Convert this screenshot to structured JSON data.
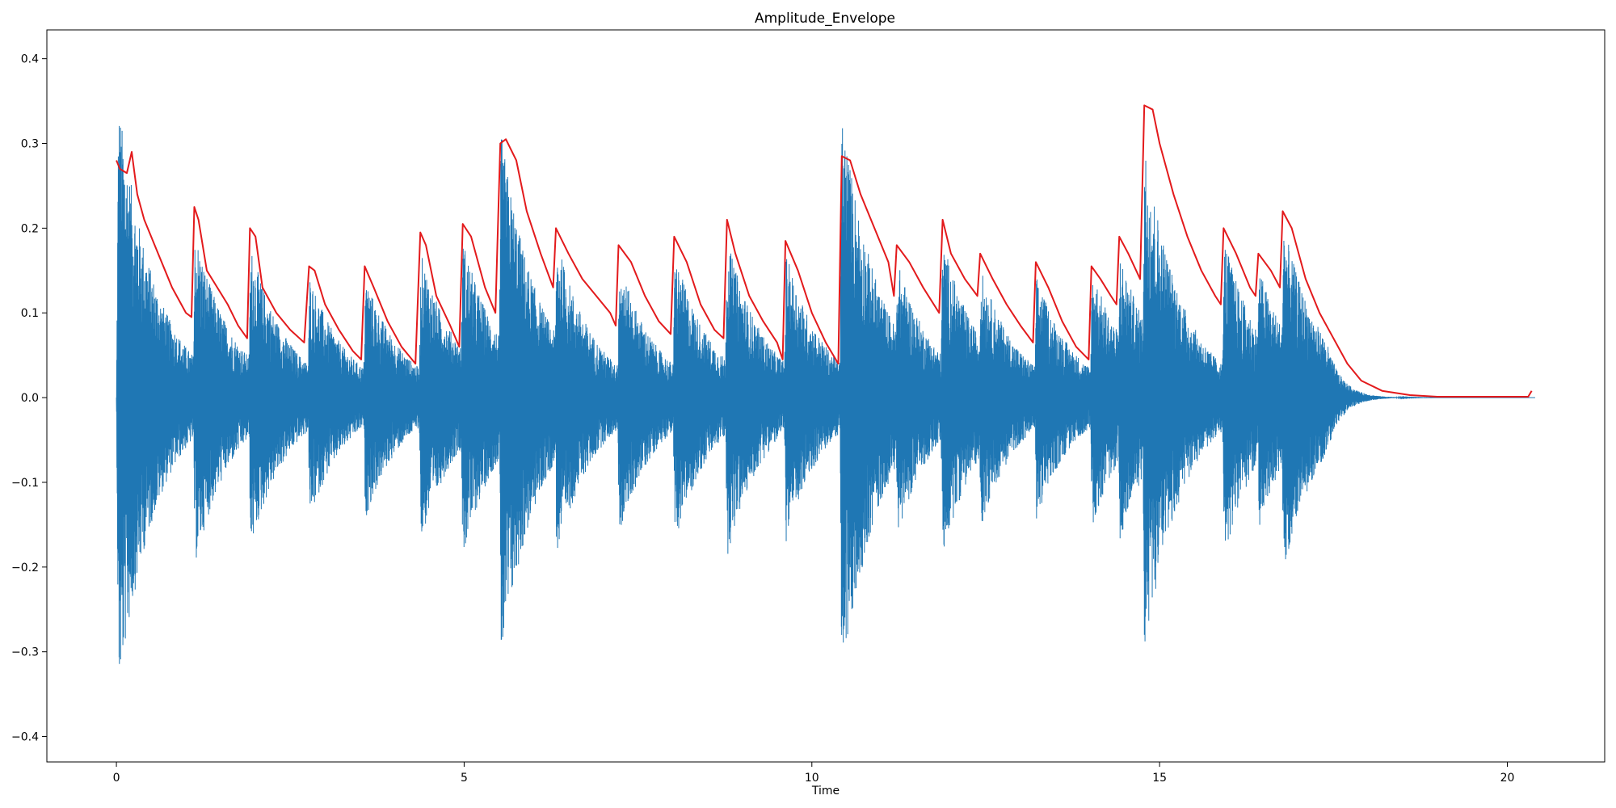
{
  "chart_data": {
    "type": "line",
    "title": "Amplitude_Envelope",
    "xlabel": "Time",
    "ylabel": "",
    "xlim": [
      -1.0,
      21.4
    ],
    "ylim": [
      -0.43,
      0.434
    ],
    "x_ticks": [
      0,
      5,
      10,
      15,
      20
    ],
    "x_tick_labels": [
      "0",
      "5",
      "10",
      "15",
      "20"
    ],
    "y_ticks": [
      -0.4,
      -0.3,
      -0.2,
      -0.1,
      0.0,
      0.1,
      0.2,
      0.3,
      0.4
    ],
    "y_tick_labels": [
      "−0.4",
      "−0.3",
      "−0.2",
      "−0.1",
      "0.0",
      "0.1",
      "0.2",
      "0.3",
      "0.4"
    ],
    "grid": false,
    "duration": 20.4,
    "series": [
      {
        "role": "waveform",
        "color": "#1f77b4",
        "onsets": [
          {
            "t": 0.0,
            "a": 0.39
          },
          {
            "t": 1.1,
            "a": 0.22
          },
          {
            "t": 1.9,
            "a": 0.2
          },
          {
            "t": 2.75,
            "a": 0.16
          },
          {
            "t": 3.55,
            "a": 0.16
          },
          {
            "t": 4.35,
            "a": 0.19
          },
          {
            "t": 4.95,
            "a": 0.21
          },
          {
            "t": 5.5,
            "a": 0.35
          },
          {
            "t": 6.3,
            "a": 0.21
          },
          {
            "t": 7.2,
            "a": 0.18
          },
          {
            "t": 8.0,
            "a": 0.19
          },
          {
            "t": 8.75,
            "a": 0.21
          },
          {
            "t": 9.6,
            "a": 0.19
          },
          {
            "t": 10.4,
            "a": 0.38
          },
          {
            "t": 11.2,
            "a": 0.18
          },
          {
            "t": 11.85,
            "a": 0.21
          },
          {
            "t": 12.4,
            "a": 0.17
          },
          {
            "t": 13.2,
            "a": 0.16
          },
          {
            "t": 14.0,
            "a": 0.17
          },
          {
            "t": 14.4,
            "a": 0.19
          },
          {
            "t": 14.75,
            "a": 0.34
          },
          {
            "t": 15.9,
            "a": 0.21
          },
          {
            "t": 16.4,
            "a": 0.17
          },
          {
            "t": 16.75,
            "a": 0.23
          }
        ]
      },
      {
        "role": "envelope",
        "color": "#e31a1c",
        "x": [
          0.0,
          0.05,
          0.15,
          0.22,
          0.3,
          0.4,
          0.5,
          0.6,
          0.7,
          0.8,
          0.9,
          1.0,
          1.08,
          1.12,
          1.18,
          1.3,
          1.45,
          1.6,
          1.75,
          1.88,
          1.92,
          2.0,
          2.1,
          2.3,
          2.5,
          2.7,
          2.77,
          2.85,
          3.0,
          3.2,
          3.4,
          3.52,
          3.57,
          3.7,
          3.9,
          4.1,
          4.3,
          4.37,
          4.45,
          4.6,
          4.8,
          4.93,
          4.98,
          5.1,
          5.3,
          5.45,
          5.52,
          5.6,
          5.75,
          5.9,
          6.1,
          6.28,
          6.32,
          6.5,
          6.7,
          6.9,
          7.1,
          7.18,
          7.22,
          7.4,
          7.6,
          7.8,
          7.97,
          8.02,
          8.2,
          8.4,
          8.6,
          8.73,
          8.78,
          8.9,
          9.1,
          9.3,
          9.5,
          9.58,
          9.62,
          9.8,
          10.0,
          10.2,
          10.38,
          10.43,
          10.55,
          10.7,
          10.9,
          11.1,
          11.18,
          11.22,
          11.4,
          11.6,
          11.83,
          11.88,
          12.0,
          12.2,
          12.38,
          12.42,
          12.6,
          12.8,
          13.0,
          13.18,
          13.22,
          13.4,
          13.6,
          13.8,
          13.98,
          14.02,
          14.15,
          14.3,
          14.38,
          14.42,
          14.55,
          14.72,
          14.78,
          14.9,
          15.0,
          15.2,
          15.4,
          15.6,
          15.8,
          15.88,
          15.92,
          16.1,
          16.3,
          16.38,
          16.42,
          16.6,
          16.73,
          16.77,
          16.9,
          17.1,
          17.3,
          17.5,
          17.7,
          17.9,
          18.2,
          18.6,
          19.0,
          19.5,
          20.0,
          20.3,
          20.35
        ],
        "y": [
          0.28,
          0.27,
          0.265,
          0.29,
          0.24,
          0.21,
          0.19,
          0.17,
          0.15,
          0.13,
          0.115,
          0.1,
          0.095,
          0.225,
          0.21,
          0.15,
          0.13,
          0.11,
          0.085,
          0.07,
          0.2,
          0.19,
          0.13,
          0.1,
          0.08,
          0.065,
          0.155,
          0.15,
          0.11,
          0.08,
          0.055,
          0.045,
          0.155,
          0.13,
          0.09,
          0.06,
          0.04,
          0.195,
          0.18,
          0.12,
          0.085,
          0.06,
          0.205,
          0.19,
          0.13,
          0.1,
          0.3,
          0.305,
          0.28,
          0.22,
          0.17,
          0.13,
          0.2,
          0.17,
          0.14,
          0.12,
          0.1,
          0.085,
          0.18,
          0.16,
          0.12,
          0.09,
          0.075,
          0.19,
          0.16,
          0.11,
          0.08,
          0.07,
          0.21,
          0.17,
          0.12,
          0.09,
          0.065,
          0.045,
          0.185,
          0.15,
          0.1,
          0.065,
          0.04,
          0.285,
          0.28,
          0.24,
          0.2,
          0.16,
          0.12,
          0.18,
          0.16,
          0.13,
          0.1,
          0.21,
          0.17,
          0.14,
          0.12,
          0.17,
          0.14,
          0.11,
          0.085,
          0.065,
          0.16,
          0.13,
          0.09,
          0.06,
          0.045,
          0.155,
          0.14,
          0.12,
          0.11,
          0.19,
          0.17,
          0.14,
          0.345,
          0.34,
          0.3,
          0.24,
          0.19,
          0.15,
          0.12,
          0.11,
          0.2,
          0.17,
          0.13,
          0.12,
          0.17,
          0.15,
          0.13,
          0.22,
          0.2,
          0.14,
          0.1,
          0.07,
          0.04,
          0.02,
          0.008,
          0.003,
          0.001,
          0.001,
          0.001,
          0.001,
          0.008
        ]
      }
    ]
  }
}
